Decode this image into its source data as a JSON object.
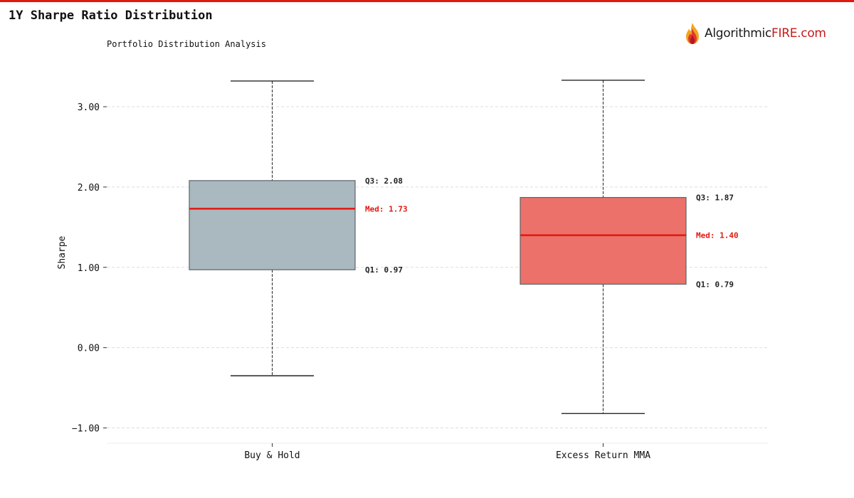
{
  "colors": {
    "accent": "#e0190f",
    "median": "#e0190f",
    "box_buy_hold": "#aab8bf",
    "box_excess": "#ec716a",
    "box_edge": "#5d6468",
    "grid": "#dddddd",
    "annotation": "#222222"
  },
  "header": {
    "title": "1Y Sharpe Ratio Distribution",
    "subtitle": "Portfolio Distribution Analysis"
  },
  "logo": {
    "icon": "flame-icon",
    "text_a": "Algorithmic",
    "text_b": "FIRE.com"
  },
  "chart_data": {
    "type": "box",
    "ylabel": "Sharpe",
    "ylim": [
      -1.19,
      3.62
    ],
    "yticks": [
      -1.0,
      0.0,
      1.0,
      2.0,
      3.0
    ],
    "ytick_labels": [
      "−1.00",
      "0.00",
      "1.00",
      "2.00",
      "3.00"
    ],
    "grid": true,
    "categories": [
      "Buy & Hold",
      "Excess Return MMA"
    ],
    "series": [
      {
        "name": "Buy & Hold",
        "whisker_low": -0.35,
        "q1": 0.97,
        "median": 1.73,
        "q3": 2.08,
        "whisker_high": 3.32,
        "labels": {
          "q3": "Q3: 2.08",
          "median": "Med: 1.73",
          "q1": "Q1: 0.97"
        }
      },
      {
        "name": "Excess Return MMA",
        "whisker_low": -0.82,
        "q1": 0.79,
        "median": 1.4,
        "q3": 1.87,
        "whisker_high": 3.33,
        "labels": {
          "q3": "Q3: 1.87",
          "median": "Med: 1.40",
          "q1": "Q1: 0.79"
        }
      }
    ]
  }
}
